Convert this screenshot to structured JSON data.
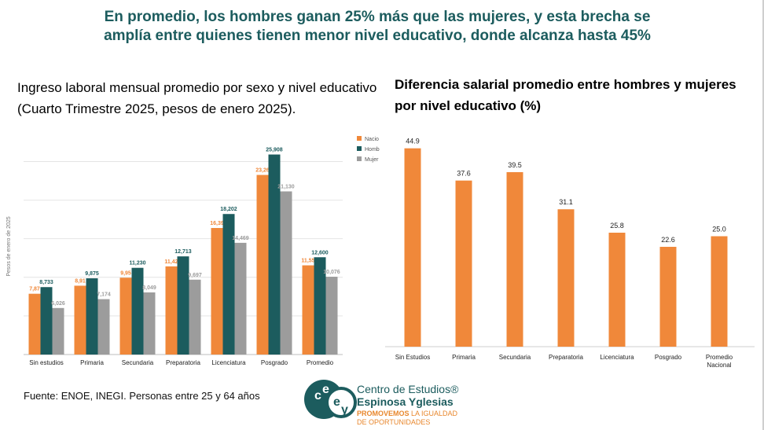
{
  "headline": "En promedio, los hombres ganan 25% más que las mujeres, y esta brecha se amplía entre quienes tienen menor nivel educativo, donde alcanza hasta 45%",
  "left_title": "Ingreso laboral mensual promedio por sexo y nivel educativo (Cuarto Trimestre 2025, pesos de enero 2025).",
  "right_title": "Diferencia salarial promedio entre hombres y mujeres por nivel educativo (%)",
  "source": "Fuente: ENOE, INEGI. Personas entre 25 y 64 años",
  "brand": {
    "line1": "Centro de Estudios®",
    "line2": "Espinosa Yglesias",
    "line3_bold": "PROMOVEMOS",
    "line3_a": "PRO",
    "line3_rest": " LA IGUALDAD DE OPORTUNIDADES",
    "logo_letters": "ceey"
  },
  "chart_data": [
    {
      "type": "bar",
      "ylabel": "Pesos de enero de 2025",
      "ylim": [
        0,
        28000
      ],
      "grid": true,
      "legend_position": "top-right",
      "categories": [
        "Sin estudios",
        "Primaria",
        "Secundaria",
        "Preparatoria",
        "Licenciatura",
        "Posgrado",
        "Promedio"
      ],
      "series": [
        {
          "name": "Nacio",
          "color": "#f0883a",
          "labels": [
            "7,87",
            "8,91",
            "9,95",
            "11,42",
            "16,39",
            "23,26",
            "11,55"
          ],
          "values": [
            7873,
            8915,
            9950,
            11420,
            16390,
            23262,
            11552
          ]
        },
        {
          "name": "Homb",
          "color": "#1c5c5e",
          "labels": [
            "8,733",
            "9,875",
            "11,230",
            "12,713",
            "18,202",
            "25,908",
            "12,600"
          ],
          "values": [
            8733,
            9875,
            11230,
            12713,
            18202,
            25908,
            12600
          ]
        },
        {
          "name": "Mujer",
          "color": "#9c9c9c",
          "labels": [
            "6,026",
            "7,174",
            "8,049",
            "9,697",
            "14,469",
            "21,130",
            "10,076"
          ],
          "values": [
            6026,
            7174,
            8049,
            9697,
            14469,
            21130,
            10076
          ]
        }
      ]
    },
    {
      "type": "bar",
      "ylim": [
        0,
        50
      ],
      "grid": false,
      "color": "#f0883a",
      "categories": [
        "Sin Estudios",
        "Primaria",
        "Secundaria",
        "Preparatoria",
        "Licenciatura",
        "Posgrado",
        "Promedio Nacional"
      ],
      "values": [
        44.9,
        37.6,
        39.5,
        31.1,
        25.8,
        22.6,
        25.0
      ],
      "labels": [
        "44.9",
        "37.6",
        "39.5",
        "31.1",
        "25.8",
        "22.6",
        "25.0"
      ]
    }
  ]
}
